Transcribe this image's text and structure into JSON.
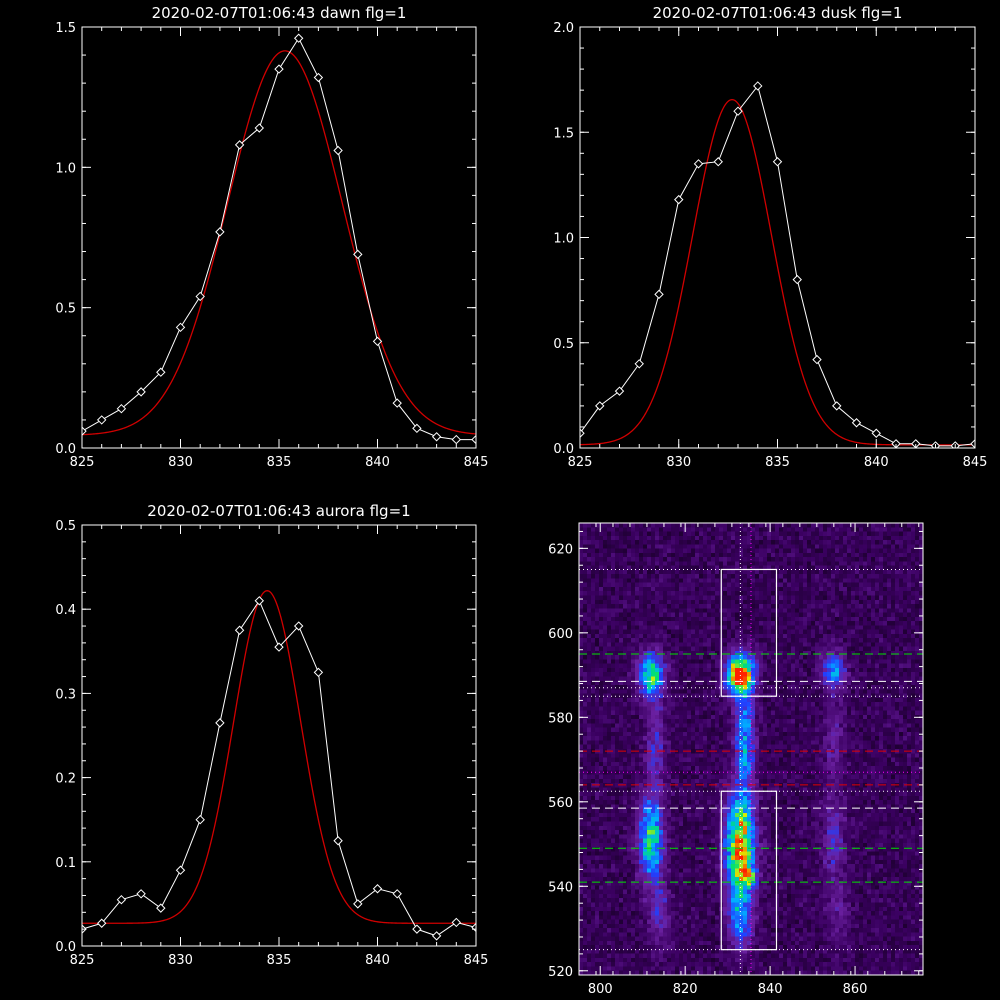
{
  "colors": {
    "background": "#000000",
    "axes": "#ffffff",
    "observed": "#ffffff",
    "fit": "#d00000"
  },
  "chart_data": [
    {
      "type": "line",
      "title": "2020-02-07T01:06:43 dawn flg=1",
      "xlim": [
        825,
        845
      ],
      "ylim": [
        0,
        1.5
      ],
      "xticks": [
        "825",
        "830",
        "835",
        "840",
        "845"
      ],
      "xtick_values": [
        825,
        830,
        835,
        840,
        845
      ],
      "yticks": [
        "0.0",
        "0.5",
        "1.0",
        "1.5"
      ],
      "ytick_values": [
        0,
        0.5,
        1.0,
        1.5
      ],
      "observed": {
        "marker": "diamond",
        "x": [
          825,
          826,
          827,
          828,
          829,
          830,
          831,
          832,
          833,
          834,
          835,
          836,
          837,
          838,
          839,
          840,
          841,
          842,
          843,
          844,
          845
        ],
        "y": [
          0.06,
          0.1,
          0.14,
          0.2,
          0.27,
          0.43,
          0.54,
          0.77,
          1.08,
          1.14,
          1.35,
          1.46,
          1.32,
          1.06,
          0.69,
          0.38,
          0.16,
          0.07,
          0.04,
          0.03,
          0.03
        ]
      },
      "fit": {
        "amplitude": 1.37,
        "center": 835.3,
        "sigma": 2.9,
        "baseline": 0.045
      }
    },
    {
      "type": "line",
      "title": "2020-02-07T01:06:43 dusk flg=1",
      "xlim": [
        825,
        845
      ],
      "ylim": [
        0,
        2.0
      ],
      "xticks": [
        "825",
        "830",
        "835",
        "840",
        "845"
      ],
      "xtick_values": [
        825,
        830,
        835,
        840,
        845
      ],
      "yticks": [
        "0.0",
        "0.5",
        "1.0",
        "1.5",
        "2.0"
      ],
      "ytick_values": [
        0,
        0.5,
        1.0,
        1.5,
        2.0
      ],
      "observed": {
        "marker": "diamond",
        "x": [
          825,
          826,
          827,
          828,
          829,
          830,
          831,
          832,
          833,
          834,
          835,
          836,
          837,
          838,
          839,
          840,
          841,
          842,
          843,
          844,
          845
        ],
        "y": [
          0.07,
          0.2,
          0.27,
          0.4,
          0.73,
          1.18,
          1.35,
          1.36,
          1.6,
          1.72,
          1.36,
          0.8,
          0.42,
          0.2,
          0.12,
          0.07,
          0.02,
          0.02,
          0.01,
          0.01,
          0.02
        ]
      },
      "fit": {
        "amplitude": 1.64,
        "center": 832.7,
        "sigma": 2.0,
        "baseline": 0.015
      }
    },
    {
      "type": "line",
      "title": "2020-02-07T01:06:43 aurora flg=1",
      "xlim": [
        825,
        845
      ],
      "ylim": [
        0,
        0.5
      ],
      "xticks": [
        "825",
        "830",
        "835",
        "840",
        "845"
      ],
      "xtick_values": [
        825,
        830,
        835,
        840,
        845
      ],
      "yticks": [
        "0.0",
        "0.1",
        "0.2",
        "0.3",
        "0.4",
        "0.5"
      ],
      "ytick_values": [
        0,
        0.1,
        0.2,
        0.3,
        0.4,
        0.5
      ],
      "observed": {
        "marker": "diamond",
        "x": [
          825,
          826,
          827,
          828,
          829,
          830,
          831,
          832,
          833,
          834,
          835,
          836,
          837,
          838,
          839,
          840,
          841,
          842,
          843,
          844,
          845
        ],
        "y": [
          0.02,
          0.027,
          0.055,
          0.062,
          0.045,
          0.09,
          0.15,
          0.265,
          0.375,
          0.41,
          0.355,
          0.38,
          0.325,
          0.125,
          0.05,
          0.068,
          0.062,
          0.02,
          0.012,
          0.028,
          0.022
        ]
      },
      "fit": {
        "amplitude": 0.395,
        "center": 834.4,
        "sigma": 1.7,
        "baseline": 0.027
      }
    },
    {
      "type": "heatmap",
      "title": "",
      "xlim": [
        795,
        876
      ],
      "ylim": [
        519,
        626
      ],
      "xticks": [
        "800",
        "820",
        "840",
        "860"
      ],
      "xtick_values": [
        800,
        820,
        840,
        860
      ],
      "yticks": [
        "520",
        "540",
        "560",
        "580",
        "600",
        "620"
      ],
      "ytick_values": [
        520,
        540,
        560,
        580,
        600,
        620
      ],
      "colormap": [
        "#000000",
        "#3a0060",
        "#6a20a0",
        "#2040ff",
        "#00b0ff",
        "#00e070",
        "#e0f000",
        "#ff2000"
      ],
      "emission_blobs": [
        {
          "x": 812,
          "y": 590,
          "sx": 2.0,
          "sy": 3.5,
          "amp": 0.62
        },
        {
          "x": 813,
          "y": 574,
          "sx": 1.6,
          "sy": 7.0,
          "amp": 0.2
        },
        {
          "x": 812,
          "y": 551,
          "sx": 2.0,
          "sy": 7.0,
          "amp": 0.55
        },
        {
          "x": 814,
          "y": 533,
          "sx": 1.8,
          "sy": 5.0,
          "amp": 0.18
        },
        {
          "x": 833,
          "y": 590,
          "sx": 2.2,
          "sy": 3.2,
          "amp": 0.95
        },
        {
          "x": 834,
          "y": 574,
          "sx": 1.6,
          "sy": 9.0,
          "amp": 0.42
        },
        {
          "x": 833,
          "y": 549,
          "sx": 2.3,
          "sy": 8.0,
          "amp": 0.85
        },
        {
          "x": 835,
          "y": 542,
          "sx": 1.2,
          "sy": 1.5,
          "amp": 0.4
        },
        {
          "x": 833,
          "y": 532,
          "sx": 2.0,
          "sy": 5.0,
          "amp": 0.32
        },
        {
          "x": 855,
          "y": 591,
          "sx": 1.8,
          "sy": 3.0,
          "amp": 0.42
        },
        {
          "x": 855,
          "y": 574,
          "sx": 1.6,
          "sy": 7.0,
          "amp": 0.14
        },
        {
          "x": 855,
          "y": 551,
          "sx": 1.8,
          "sy": 7.0,
          "amp": 0.2
        },
        {
          "x": 856,
          "y": 533,
          "sx": 1.8,
          "sy": 5.0,
          "amp": 0.12
        }
      ],
      "horizontal_lines": [
        {
          "y": 615,
          "color": "#ffffff",
          "style": "dotted"
        },
        {
          "y": 595,
          "color": "#00e000",
          "style": "dashed"
        },
        {
          "y": 588.5,
          "color": "#ffffff",
          "style": "dashed"
        },
        {
          "y": 587,
          "color": "#ffffff",
          "style": "dotted"
        },
        {
          "y": 585,
          "color": "#ffffff",
          "style": "dotted"
        },
        {
          "y": 572,
          "color": "#e00000",
          "style": "dashed"
        },
        {
          "y": 567,
          "color": "#ff00ff",
          "style": "dotted"
        },
        {
          "y": 564,
          "color": "#e00000",
          "style": "dashed"
        },
        {
          "y": 562.5,
          "color": "#ffffff",
          "style": "dotted"
        },
        {
          "y": 558.5,
          "color": "#ffffff",
          "style": "dashed"
        },
        {
          "y": 549,
          "color": "#00e000",
          "style": "dashed"
        },
        {
          "y": 541,
          "color": "#00e000",
          "style": "dashed"
        },
        {
          "y": 525,
          "color": "#ffffff",
          "style": "dotted"
        }
      ],
      "vertical_lines": [
        {
          "x": 833,
          "color": "#ffffff",
          "style": "dotted"
        },
        {
          "x": 835.5,
          "color": "#ff00ff",
          "style": "dotted"
        }
      ],
      "boxes": [
        {
          "x0": 828.5,
          "x1": 841.5,
          "y0": 585,
          "y1": 615
        },
        {
          "x0": 828.5,
          "x1": 841.5,
          "y0": 525,
          "y1": 562.5
        }
      ]
    }
  ]
}
